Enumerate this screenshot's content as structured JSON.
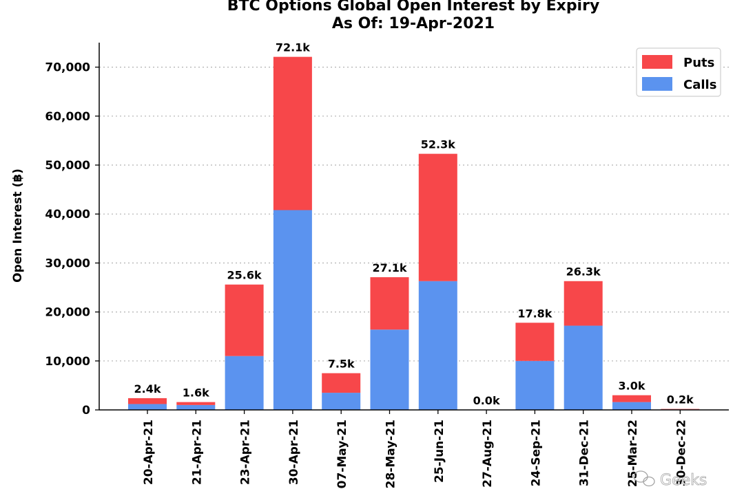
{
  "chart_data": {
    "type": "bar",
    "stacked": true,
    "title": "BTC Options Global Open Interest by Expiry",
    "subtitle": "As Of: 19-Apr-2021",
    "ylabel": "Open Interest (฿)",
    "xlabel": "",
    "ylim": [
      0,
      75000
    ],
    "yticks": [
      0,
      10000,
      20000,
      30000,
      40000,
      50000,
      60000,
      70000
    ],
    "ytick_labels": [
      "0",
      "10,000",
      "20,000",
      "30,000",
      "40,000",
      "50,000",
      "60,000",
      "70,000"
    ],
    "grid": "horizontal dotted",
    "legend_position": "top-right",
    "categories": [
      "20-Apr-21",
      "21-Apr-21",
      "23-Apr-21",
      "30-Apr-21",
      "07-May-21",
      "28-May-21",
      "25-Jun-21",
      "27-Aug-21",
      "24-Sep-21",
      "31-Dec-21",
      "25-Mar-22",
      "30-Dec-22"
    ],
    "series": [
      {
        "name": "Calls",
        "color": "#5B93EF",
        "values": [
          1200,
          1000,
          11000,
          40800,
          3500,
          16400,
          26300,
          0,
          10000,
          17200,
          1600,
          100
        ]
      },
      {
        "name": "Puts",
        "color": "#F7474A",
        "values": [
          1200,
          600,
          14600,
          31300,
          4000,
          10700,
          26000,
          0,
          7800,
          9100,
          1400,
          100
        ]
      }
    ],
    "totals_labels": [
      "2.4k",
      "1.6k",
      "25.6k",
      "72.1k",
      "7.5k",
      "27.1k",
      "52.3k",
      "0.0k",
      "17.8k",
      "26.3k",
      "3.0k",
      "0.2k"
    ]
  },
  "watermark": {
    "text": "Geeks",
    "icon": "wechat-icon"
  }
}
